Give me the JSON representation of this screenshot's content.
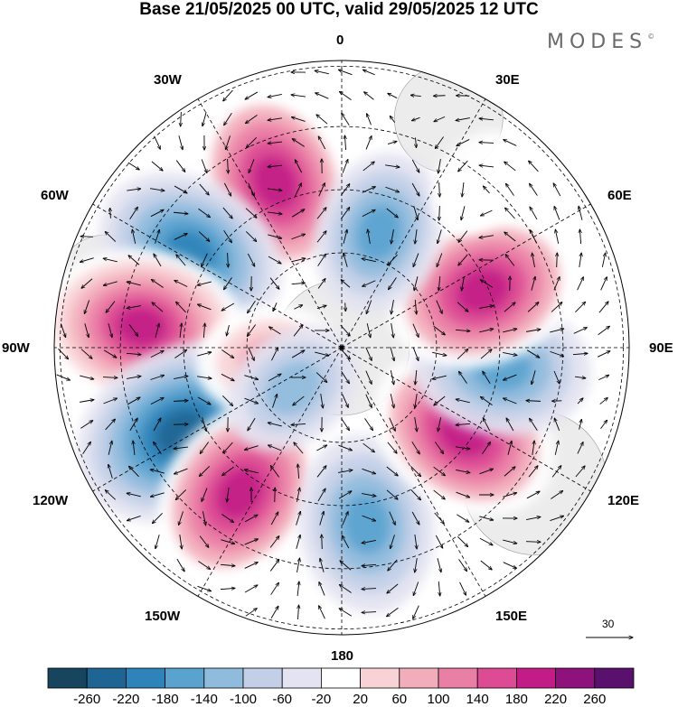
{
  "title": "Base 21/05/2025 00 UTC, valid 29/05/2025 12 UTC",
  "brand": "MODES",
  "brand_mark": "©",
  "longitude_labels": {
    "lon_0": "0",
    "lon_30e": "30E",
    "lon_60e": "60E",
    "lon_90e": "90E",
    "lon_120e": "120E",
    "lon_150e": "150E",
    "lon_180": "180",
    "lon_150w": "150W",
    "lon_120w": "120W",
    "lon_90w": "90W",
    "lon_60w": "60W",
    "lon_30w": "30W"
  },
  "reference_vector": "30",
  "colorbar": {
    "ticks": [
      "-260",
      "-220",
      "-180",
      "-140",
      "-100",
      "-60",
      "-20",
      "20",
      "60",
      "100",
      "140",
      "180",
      "220",
      "260"
    ],
    "colors": [
      "#17455f",
      "#1f6594",
      "#2e83b8",
      "#5aa3cf",
      "#8fbbdd",
      "#c2cfe7",
      "#e3e3f1",
      "#ffffff",
      "#f9d2d6",
      "#f2adbb",
      "#ea7fa6",
      "#dc4b94",
      "#c21d87",
      "#8f117c",
      "#5a116e"
    ]
  },
  "field": {
    "description_hidden": false,
    "anomalies": [
      {
        "lon": -22,
        "r": 0.62,
        "value": 200
      },
      {
        "lon": -58,
        "r": 0.62,
        "value": -200
      },
      {
        "lon": -84,
        "r": 0.7,
        "value": 220
      },
      {
        "lon": -118,
        "r": 0.63,
        "value": -250
      },
      {
        "lon": -145,
        "r": 0.62,
        "value": 200
      },
      {
        "lon": 172,
        "r": 0.62,
        "value": -170
      },
      {
        "lon": 125,
        "r": 0.52,
        "value": 200
      },
      {
        "lon": 97,
        "r": 0.56,
        "value": -170
      },
      {
        "lon": 68,
        "r": 0.53,
        "value": 200
      },
      {
        "lon": 18,
        "r": 0.42,
        "value": -140
      },
      {
        "lon": -99,
        "r": 0.26,
        "value": 100
      },
      {
        "lon": -130,
        "r": 0.22,
        "value": -100
      },
      {
        "lon": 40,
        "r": 0.75,
        "value": 40
      }
    ]
  }
}
